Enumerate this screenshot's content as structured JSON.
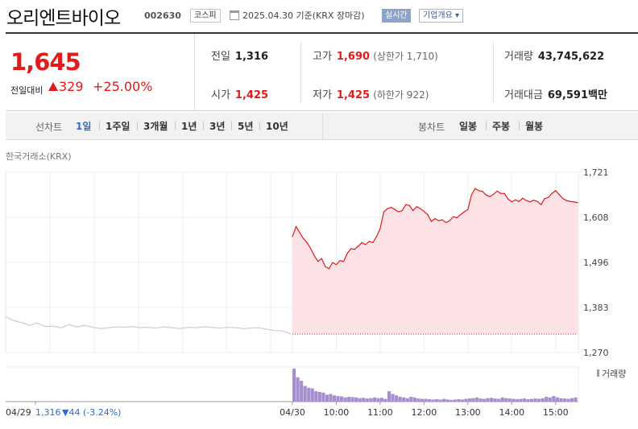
{
  "stock": {
    "name": "오리엔트바이오",
    "code": "002630",
    "market": "코스피",
    "date_info": "2025.04.30 기준(KRX 장마감)",
    "realtime_label": "실시간",
    "company_label": "기업개요 ▾"
  },
  "summary": {
    "current_price": "1,645",
    "change_label": "전일대비",
    "change_value": "329",
    "change_pct": "+25.00%",
    "prev_close_label": "전일",
    "prev_close": "1,316",
    "open_label": "시가",
    "open": "1,425",
    "high_label": "고가",
    "high": "1,690",
    "upper_limit": "(상한가 1,710)",
    "low_label": "저가",
    "low": "1,425",
    "lower_limit": "(하한가 922)",
    "volume_label": "거래량",
    "volume": "43,745,622",
    "amount_label": "거래대금",
    "amount": "69,591",
    "amount_unit": "백만"
  },
  "tabs": {
    "line_header": "선차트",
    "line": [
      "1일",
      "1주일",
      "3개월",
      "1년",
      "3년",
      "5년",
      "10년"
    ],
    "active": "1일",
    "candle_header": "봉차트",
    "candle": [
      "일봉",
      "주봉",
      "월봉"
    ]
  },
  "exchange_label": "한국거래소(KRX)",
  "prev_day_label": "04/29",
  "prev_day_close": "1,316",
  "prev_day_change": "▼44 (-3.24%)",
  "colors": {
    "up": "#e21a1a",
    "down": "#2e6bd3",
    "fill": "#fde3e5",
    "volume": "#a68fcf",
    "prev_line": "#cccccc"
  },
  "chart_data": {
    "type": "line",
    "ylim": [
      1270,
      1721
    ],
    "y_ticks": [
      "1,721",
      "1,608",
      "1,496",
      "1,383",
      "1,270"
    ],
    "x_ticks": [
      "04/30",
      "10:00",
      "11:00",
      "12:00",
      "13:00",
      "14:00",
      "15:00"
    ],
    "baseline": 1316,
    "volume_label": "거래량",
    "series": [
      {
        "x": [
          "09:00",
          "09:05",
          "09:10",
          "09:15",
          "09:20",
          "09:25",
          "09:30",
          "09:35",
          "09:40",
          "09:45",
          "09:50",
          "09:55",
          "10:00",
          "10:05",
          "10:10",
          "10:15",
          "10:20",
          "10:25",
          "10:30",
          "10:35",
          "10:40",
          "10:45",
          "10:50",
          "10:55",
          "11:00",
          "11:05",
          "11:10",
          "11:15",
          "11:20",
          "11:25",
          "11:30",
          "11:35",
          "11:40",
          "11:45",
          "11:50",
          "11:55",
          "12:00",
          "12:05",
          "12:10",
          "12:15",
          "12:20",
          "12:25",
          "12:30",
          "12:35",
          "12:40",
          "12:45",
          "12:50",
          "12:55",
          "13:00",
          "13:05",
          "13:10",
          "13:15",
          "13:20",
          "13:25",
          "13:30",
          "13:35",
          "13:40",
          "13:45",
          "13:50",
          "13:55",
          "14:00",
          "14:05",
          "14:10",
          "14:15",
          "14:20",
          "14:25",
          "14:30",
          "14:35",
          "14:40",
          "14:45",
          "14:50",
          "14:55",
          "15:00",
          "15:05",
          "15:10",
          "15:15",
          "15:20",
          "15:30"
        ],
        "values": [
          1560,
          1585,
          1570,
          1555,
          1545,
          1530,
          1512,
          1498,
          1505,
          1485,
          1480,
          1495,
          1490,
          1500,
          1498,
          1518,
          1530,
          1528,
          1536,
          1545,
          1540,
          1548,
          1545,
          1560,
          1580,
          1622,
          1630,
          1633,
          1628,
          1622,
          1625,
          1640,
          1638,
          1625,
          1635,
          1630,
          1623,
          1615,
          1598,
          1605,
          1600,
          1602,
          1595,
          1600,
          1610,
          1607,
          1615,
          1622,
          1628,
          1665,
          1680,
          1675,
          1673,
          1664,
          1660,
          1666,
          1674,
          1668,
          1668,
          1654,
          1647,
          1652,
          1648,
          1656,
          1650,
          1647,
          1651,
          1648,
          1640,
          1655,
          1658,
          1668,
          1675,
          1665,
          1655,
          1650,
          1648,
          1645
        ]
      }
    ],
    "prev_day": {
      "values": [
        1360,
        1350,
        1345,
        1338,
        1344,
        1335,
        1336,
        1332,
        1340,
        1334,
        1338,
        1333,
        1330,
        1332,
        1334,
        1333,
        1335,
        1332,
        1333,
        1331,
        1334,
        1332,
        1330,
        1333,
        1332,
        1334,
        1333,
        1331,
        1333,
        1332,
        1330,
        1331,
        1332,
        1328,
        1325,
        1324,
        1316
      ]
    },
    "volume": [
      95,
      70,
      60,
      45,
      40,
      38,
      30,
      28,
      26,
      20,
      22,
      18,
      16,
      15,
      12,
      14,
      13,
      12,
      10,
      11,
      9,
      10,
      12,
      10,
      11,
      8,
      30,
      22,
      18,
      14,
      12,
      10,
      14,
      12,
      9,
      8,
      8,
      7,
      6,
      7,
      6,
      8,
      6,
      5,
      6,
      7,
      6,
      8,
      9,
      10,
      12,
      9,
      8,
      10,
      11,
      9,
      8,
      12,
      10,
      9,
      8,
      7,
      8,
      9,
      7,
      8,
      9,
      8,
      10,
      14,
      12,
      16,
      12,
      10,
      9,
      8,
      10,
      12
    ]
  }
}
